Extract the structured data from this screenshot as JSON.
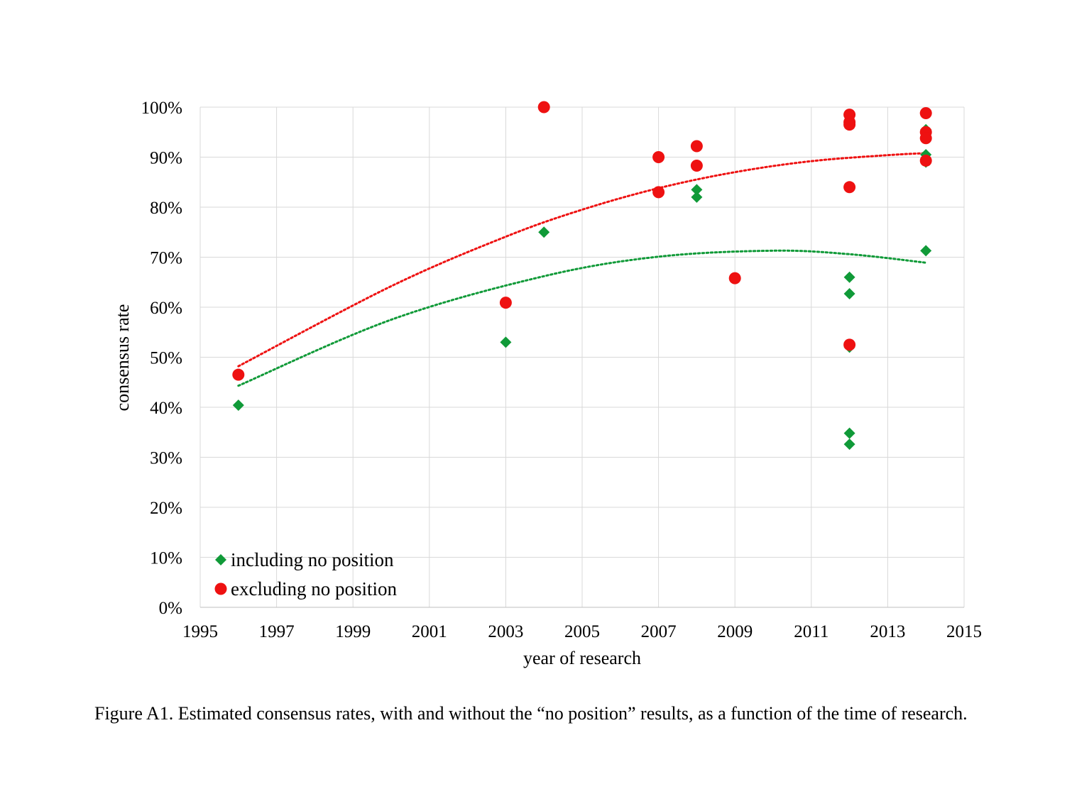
{
  "chart_data": {
    "type": "scatter",
    "xlabel": "year of research",
    "ylabel": "consensus rate",
    "xlim": [
      1995,
      2015
    ],
    "ylim": [
      0,
      1
    ],
    "x_ticks": [
      "1995",
      "1997",
      "1999",
      "2001",
      "2003",
      "2005",
      "2007",
      "2009",
      "2011",
      "2013",
      "2015"
    ],
    "y_ticks": [
      "0%",
      "10%",
      "20%",
      "30%",
      "40%",
      "50%",
      "60%",
      "70%",
      "80%",
      "90%",
      "100%"
    ],
    "grid": true,
    "legend_position": "bottom-left",
    "series": [
      {
        "name": "including no position",
        "marker": "diamond",
        "color": "#109a38",
        "points": [
          [
            1996,
            0.404
          ],
          [
            2003,
            0.53
          ],
          [
            2004,
            0.75
          ],
          [
            2008,
            0.835
          ],
          [
            2008,
            0.82
          ],
          [
            2012,
            0.66
          ],
          [
            2012,
            0.627
          ],
          [
            2012,
            0.52
          ],
          [
            2012,
            0.348
          ],
          [
            2012,
            0.326
          ],
          [
            2014,
            0.955
          ],
          [
            2014,
            0.905
          ],
          [
            2014,
            0.89
          ],
          [
            2014,
            0.713
          ]
        ],
        "trendline": {
          "type": "polynomial",
          "x": [
            1996,
            2014
          ],
          "coefficients": [
            0.0,
            0.0,
            0.0
          ],
          "fitted": [
            [
              1996,
              0.443
            ],
            [
              2000,
              0.575
            ],
            [
              2004,
              0.662
            ],
            [
              2007,
              0.701
            ],
            [
              2010,
              0.713
            ],
            [
              2012,
              0.706
            ],
            [
              2014,
              0.689
            ]
          ]
        }
      },
      {
        "name": "excluding no position",
        "marker": "circle",
        "color": "#ee1111",
        "points": [
          [
            1996,
            0.465
          ],
          [
            2003,
            0.609
          ],
          [
            2004,
            1.0
          ],
          [
            2007,
            0.9
          ],
          [
            2007,
            0.83
          ],
          [
            2008,
            0.922
          ],
          [
            2008,
            0.883
          ],
          [
            2009,
            0.658
          ],
          [
            2012,
            0.985
          ],
          [
            2012,
            0.97
          ],
          [
            2012,
            0.965
          ],
          [
            2012,
            0.84
          ],
          [
            2012,
            0.525
          ],
          [
            2014,
            0.988
          ],
          [
            2014,
            0.95
          ],
          [
            2014,
            0.938
          ],
          [
            2014,
            0.893
          ]
        ],
        "trendline": {
          "type": "polynomial",
          "fitted": [
            [
              1996,
              0.482
            ],
            [
              2000,
              0.642
            ],
            [
              2003,
              0.741
            ],
            [
              2005,
              0.795
            ],
            [
              2007,
              0.838
            ],
            [
              2009,
              0.87
            ],
            [
              2011,
              0.892
            ],
            [
              2013,
              0.904
            ],
            [
              2014,
              0.908
            ]
          ]
        }
      }
    ]
  },
  "caption": "Figure A1. Estimated consensus rates, with and without the “no position” results, as a function of the time of research."
}
